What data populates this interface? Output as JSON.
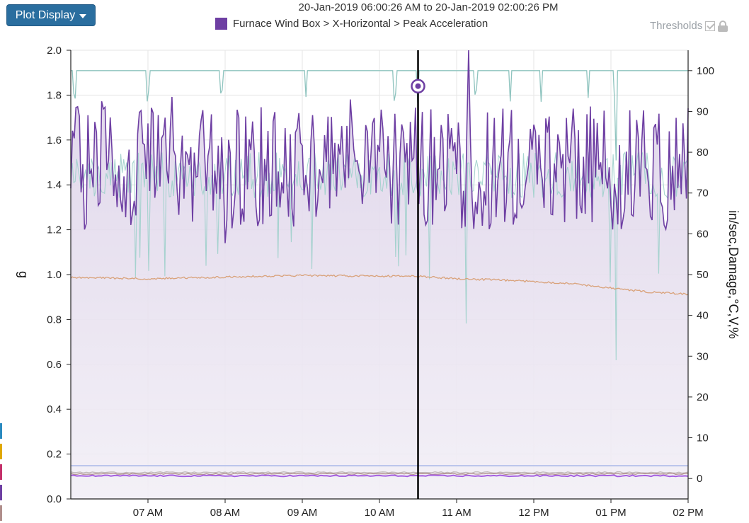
{
  "toolbar": {
    "plot_display_label": "Plot Display"
  },
  "header": {
    "title": "20-Jan-2019 06:00:26 AM to 20-Jan-2019 02:00:26 PM",
    "legend_label": "Furnace Wind Box > X-Horizontal > Peak Acceleration",
    "thresholds_label": "Thresholds"
  },
  "chart_data": {
    "type": "line",
    "title": "20-Jan-2019 06:00:26 AM to 20-Jan-2019 02:00:26 PM",
    "ylabel": "g",
    "y2label": "in/sec,Damage,°C,V,%",
    "ylim": [
      0,
      2.0
    ],
    "y2lim": [
      -5,
      105
    ],
    "yticks": [
      "0.0",
      "0.2",
      "0.4",
      "0.6",
      "0.8",
      "1.0",
      "1.2",
      "1.4",
      "1.6",
      "1.8",
      "2.0"
    ],
    "y2ticks": [
      "0",
      "10",
      "20",
      "30",
      "40",
      "50",
      "60",
      "70",
      "80",
      "90",
      "100"
    ],
    "xlim": [
      "06:00",
      "14:00"
    ],
    "xticks": [
      "07 AM",
      "08 AM",
      "09 AM",
      "10 AM",
      "11 AM",
      "12 PM",
      "01 PM",
      "02 PM"
    ],
    "cursor_time": "10:30",
    "cursor_value_g": 1.84,
    "grid": true,
    "series": [
      {
        "name": "Furnace Wind Box > X-Horizontal > Peak Acceleration",
        "axis": "left",
        "color": "#6e3fa3",
        "fill": true,
        "typical_range": [
          1.2,
          1.75
        ],
        "max": 2.0,
        "min": 1.14
      },
      {
        "axis": "right",
        "color": "#9ed0cb",
        "typical_range": [
          60,
          85
        ],
        "min": 29
      },
      {
        "axis": "right",
        "color": "#8fc4bf",
        "baseline": 100,
        "min": 31
      },
      {
        "axis": "right",
        "color": "#d9a27a",
        "points": [
          [
            6.0,
            49.3
          ],
          [
            7.0,
            49.0
          ],
          [
            8.0,
            49.4
          ],
          [
            9.0,
            49.8
          ],
          [
            10.0,
            49.6
          ],
          [
            10.5,
            49.6
          ],
          [
            11.0,
            49.0
          ],
          [
            11.5,
            48.7
          ],
          [
            12.0,
            48.3
          ],
          [
            12.5,
            47.8
          ],
          [
            13.0,
            46.7
          ],
          [
            13.5,
            45.7
          ],
          [
            14.0,
            45.2
          ]
        ]
      },
      {
        "axis": "left",
        "color": "#9fb0e6",
        "value": 0.148
      },
      {
        "axis": "left",
        "color": "#c0b9b9",
        "value": 0.118
      },
      {
        "axis": "left",
        "color": "#b08e8b",
        "value": 0.112
      },
      {
        "axis": "left",
        "color": "#a55fe0",
        "value": 0.103
      }
    ]
  },
  "colors": {
    "accent": "#2a6e9f",
    "side_strips": [
      "#2a8ac0",
      "#e0a800",
      "#c4306a",
      "#6e3fa3",
      "#b08e8b"
    ]
  }
}
